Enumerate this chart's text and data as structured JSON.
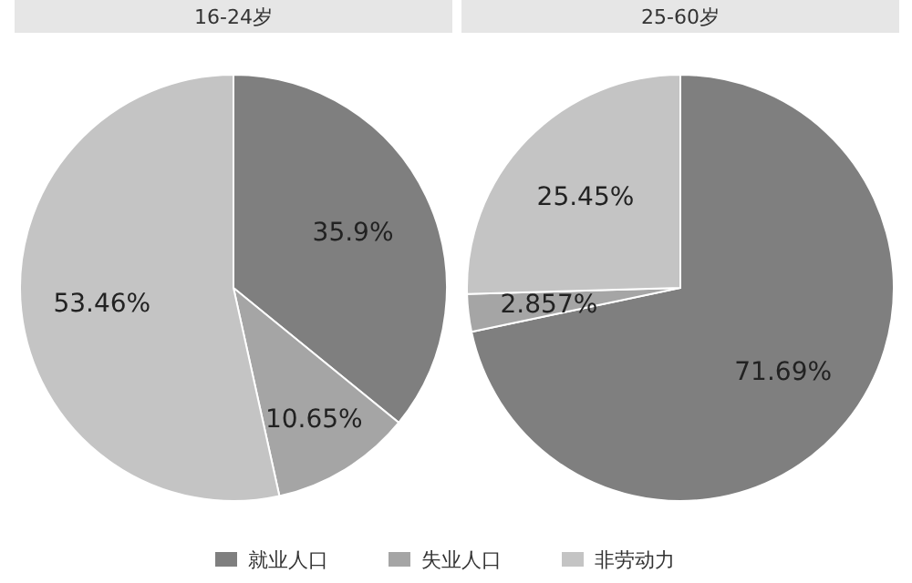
{
  "chart_data": [
    {
      "type": "pie",
      "title": "16-24岁",
      "categories": [
        "就业人口",
        "失业人口",
        "非劳动力"
      ],
      "values": [
        35.9,
        10.65,
        53.46
      ],
      "value_labels": [
        "35.9%",
        "10.65%",
        "53.46%"
      ],
      "colors": [
        "#7f7f7f",
        "#a5a5a5",
        "#c4c4c4"
      ],
      "legend": "bottom"
    },
    {
      "type": "pie",
      "title": "25-60岁",
      "categories": [
        null,
        null,
        null
      ],
      "values": [
        71.69,
        2.857,
        25.45
      ],
      "value_labels": [
        "71.69%",
        "2.857%",
        "25.45%"
      ],
      "colors": [
        "#7f7f7f",
        "#a5a5a5",
        "#c4c4c4"
      ]
    }
  ]
}
